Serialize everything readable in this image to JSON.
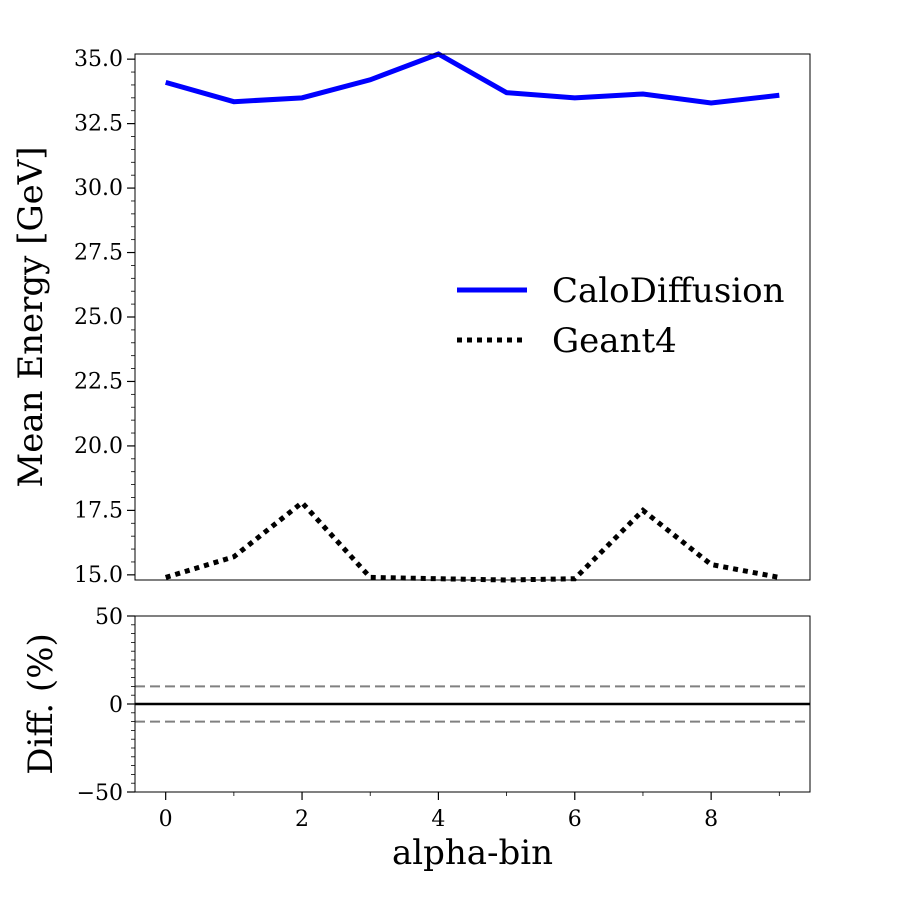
{
  "chart_data": [
    {
      "type": "line",
      "panel": "main",
      "title": "",
      "ylabel": "Mean Energy [GeV]",
      "xlim": [
        -0.45,
        9.45
      ],
      "ylim": [
        14.8,
        35.2
      ],
      "yticks": [
        "15.0",
        "17.5",
        "20.0",
        "22.5",
        "25.0",
        "27.5",
        "30.0",
        "32.5",
        "35.0"
      ],
      "ytick_values": [
        15.0,
        17.5,
        20.0,
        22.5,
        25.0,
        27.5,
        30.0,
        32.5,
        35.0
      ],
      "x": [
        0,
        1,
        2,
        3,
        4,
        5,
        6,
        7,
        8,
        9
      ],
      "series": [
        {
          "name": "CaloDiffusion",
          "color": "#0000ff",
          "style": "solid",
          "values": [
            34.1,
            33.35,
            33.5,
            34.2,
            35.2,
            33.7,
            33.5,
            33.65,
            33.3,
            33.6
          ]
        },
        {
          "name": "Geant4",
          "color": "#000000",
          "style": "dotted",
          "values": [
            14.9,
            15.7,
            17.8,
            14.9,
            14.85,
            14.8,
            14.85,
            17.5,
            15.4,
            14.9
          ]
        }
      ],
      "legend_position": "center-right"
    },
    {
      "type": "line",
      "panel": "ratio",
      "xlabel": "alpha-bin",
      "ylabel": "Diff. (%)",
      "xlim": [
        -0.45,
        9.45
      ],
      "ylim": [
        -50,
        50
      ],
      "xticks": [
        "0",
        "2",
        "4",
        "6",
        "8"
      ],
      "xtick_values": [
        0,
        2,
        4,
        6,
        8
      ],
      "yticks": [
        "−50",
        "0",
        "50"
      ],
      "ytick_values": [
        -50,
        0,
        50
      ],
      "reference_lines": [
        {
          "y": 0,
          "color": "#000000",
          "style": "solid"
        },
        {
          "y": 10,
          "color": "#808080",
          "style": "dashed"
        },
        {
          "y": -10,
          "color": "#808080",
          "style": "dashed"
        }
      ]
    }
  ]
}
